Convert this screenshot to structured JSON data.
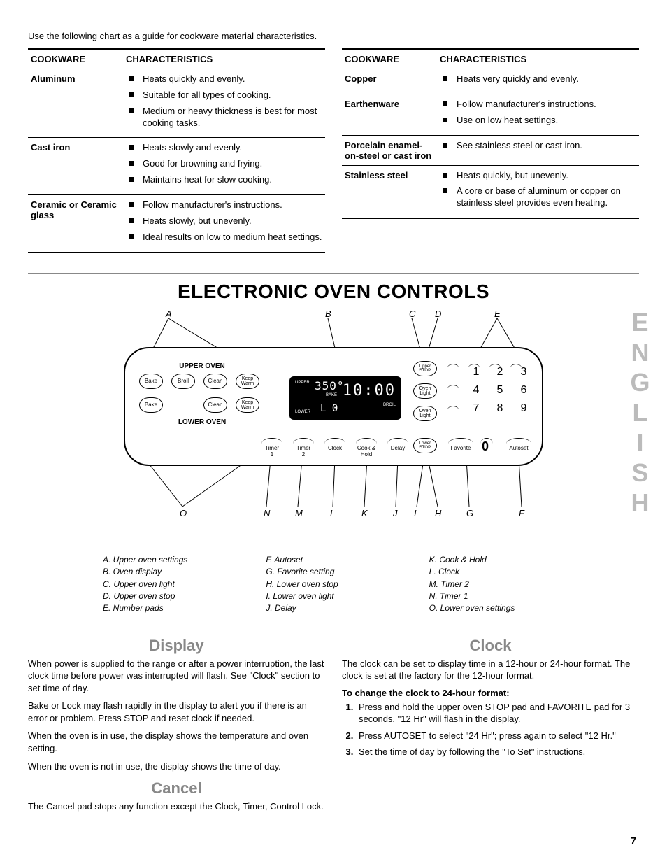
{
  "intro": "Use the following chart as a guide for cookware material characteristics.",
  "table_headers": {
    "c1": "COOKWARE",
    "c2": "CHARACTERISTICS"
  },
  "left_table": [
    {
      "mat": "Aluminum",
      "items": [
        "Heats quickly and evenly.",
        "Suitable for all types of cooking.",
        "Medium or heavy thickness is best for most cooking tasks."
      ]
    },
    {
      "mat": "Cast iron",
      "items": [
        "Heats slowly and evenly.",
        "Good for browning and frying.",
        "Maintains heat for slow cooking."
      ]
    },
    {
      "mat": "Ceramic or Ceramic glass",
      "items": [
        "Follow manufacturer's instructions.",
        "Heats slowly, but unevenly.",
        "Ideal results on low to medium heat settings."
      ]
    }
  ],
  "right_table": [
    {
      "mat": "Copper",
      "items": [
        "Heats very quickly and evenly."
      ]
    },
    {
      "mat": "Earthenware",
      "items": [
        "Follow manufacturer's instructions.",
        "Use on low heat settings."
      ]
    },
    {
      "mat": "Porcelain enamel-on-steel or cast iron",
      "items": [
        "See stainless steel or cast iron."
      ]
    },
    {
      "mat": "Stainless steel",
      "items": [
        "Heats quickly, but unevenly.",
        "A core or base of aluminum or copper on stainless steel provides even heating."
      ]
    }
  ],
  "section_title": "ELECTRONIC OVEN CONTROLS",
  "callouts": {
    "A": "A",
    "B": "B",
    "C": "C",
    "D": "D",
    "E": "E",
    "F": "F",
    "G": "G",
    "H": "H",
    "I": "I",
    "J": "J",
    "K": "K",
    "L": "L",
    "M": "M",
    "N": "N",
    "O": "O"
  },
  "panel": {
    "upper_label": "UPPER OVEN",
    "lower_label": "LOWER OVEN",
    "upper_btns": [
      "Bake",
      "Broil",
      "Clean",
      "Keep\nWarm"
    ],
    "lower_btns": [
      "Bake",
      "",
      "Clean",
      "Keep\nWarm"
    ],
    "bottom_btns": [
      "Timer\n1",
      "Timer\n2",
      "Clock",
      "Cook &\nHold",
      "Delay"
    ],
    "right_btns": {
      "ustop": "Upper\nSTOP",
      "ol1": "Oven\nLight",
      "ol2": "Oven\nLight",
      "lstop": "Lower\nSTOP",
      "fav": "Favorite",
      "auto": "Autoset"
    },
    "numpad": [
      "1",
      "2",
      "3",
      "4",
      "5",
      "6",
      "7",
      "8",
      "9"
    ],
    "zero": "0",
    "display": {
      "upper": "UPPER",
      "temp": "350°",
      "bake": "BAKE",
      "lower": "LOWER",
      "lo": "L 0",
      "time": "10:00",
      "broil": "BROIL"
    }
  },
  "legend": {
    "c1": [
      "A. Upper oven settings",
      "B. Oven display",
      "C. Upper oven light",
      "D. Upper oven stop",
      "E. Number pads"
    ],
    "c2": [
      "F. Autoset",
      "G. Favorite setting",
      "H. Lower oven stop",
      "I. Lower oven light",
      "J. Delay"
    ],
    "c3": [
      "K. Cook & Hold",
      "L. Clock",
      "M. Timer 2",
      "N. Timer 1",
      "O. Lower oven settings"
    ]
  },
  "display_h": "Display",
  "display_p": [
    "When power is supplied to the range or after a power interruption, the last clock time before power was interrupted will flash. See \"Clock\" section to set time of day.",
    "Bake or Lock may flash rapidly in the display to alert you if there is an error or problem. Press STOP and reset clock if needed.",
    "When the oven is in use, the display shows the temperature and oven setting.",
    "When the oven is not in use, the display shows the time of day."
  ],
  "cancel_h": "Cancel",
  "cancel_p": "The Cancel pad stops any function except the Clock, Timer, Control Lock.",
  "clock_h": "Clock",
  "clock_p": "The clock can be set to display time in a 12-hour or 24-hour format. The clock is set at the factory for the 12-hour format.",
  "clock_bold": "To change the clock to 24-hour format:",
  "clock_steps": [
    "Press and hold the upper oven STOP pad and FAVORITE pad for 3 seconds. \"12 Hr\" will flash in the display.",
    "Press AUTOSET to select \"24 Hr\"; press again to select \"12 Hr.\"",
    "Set the time of day by following the \"To Set\" instructions."
  ],
  "side_label": "ENGLISH",
  "page": "7"
}
